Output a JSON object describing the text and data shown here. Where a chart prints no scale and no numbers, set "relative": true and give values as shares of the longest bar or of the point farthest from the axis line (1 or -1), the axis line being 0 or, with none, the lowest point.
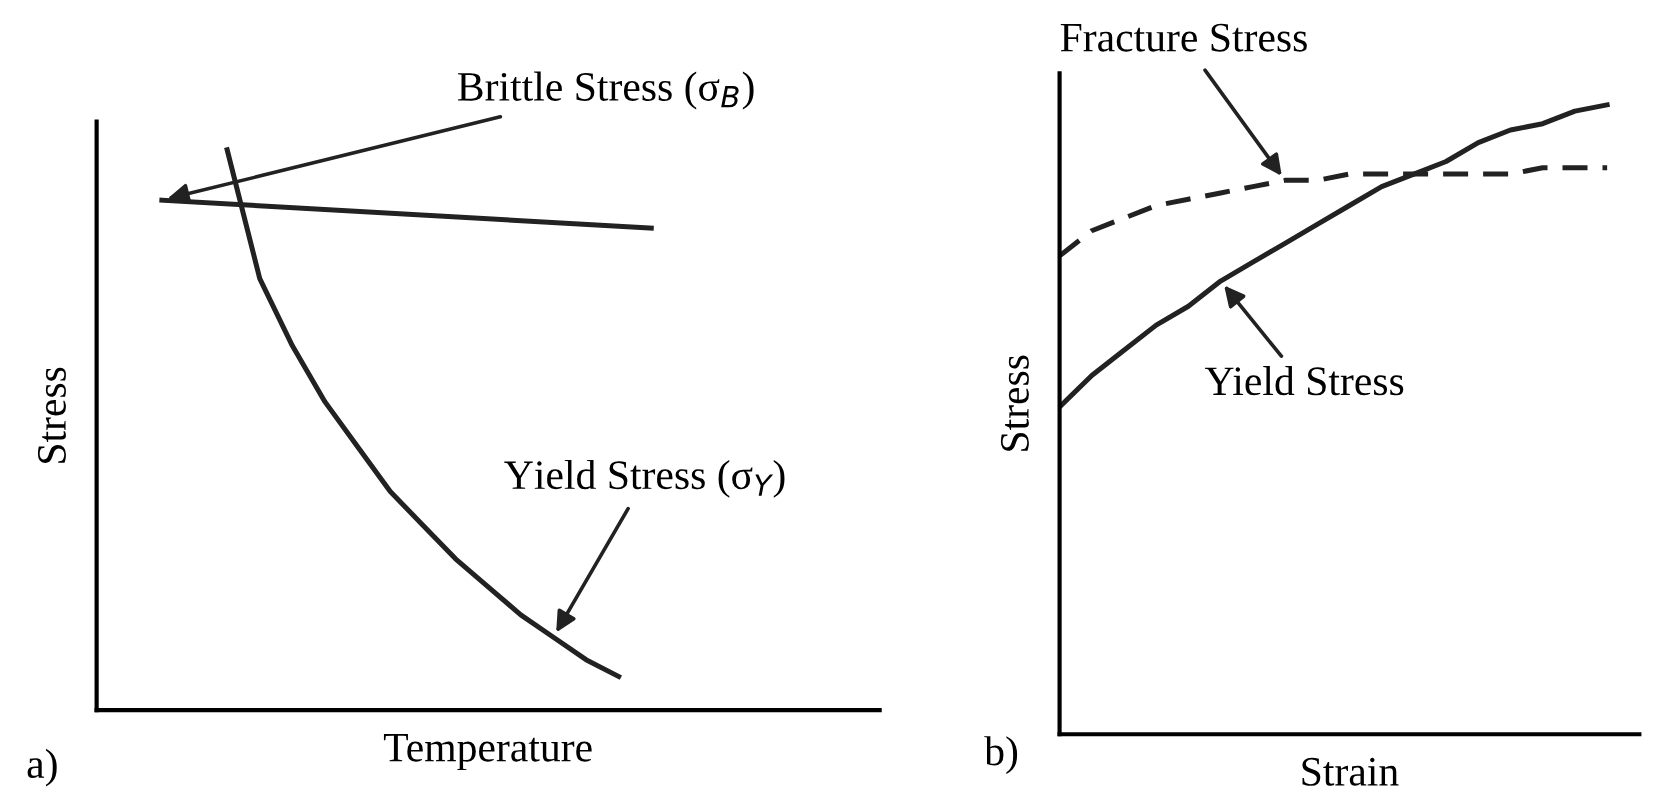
{
  "chart_data": [
    {
      "type": "line",
      "relative": true,
      "xlabel": "Temperature",
      "ylabel": "Stress",
      "categories": [
        null,
        null,
        null,
        null,
        null,
        null,
        null,
        null,
        null,
        null,
        null,
        null,
        null,
        null,
        null,
        null,
        null,
        null,
        null,
        null,
        null,
        null,
        null,
        null,
        null
      ],
      "series": [
        {
          "color": "#222222",
          "line_style": "solid",
          "values": [
            null,
            null,
            0.91,
            null,
            null,
            null,
            null,
            null,
            null,
            null,
            null,
            null,
            null,
            null,
            null,
            null,
            null,
            0.86,
            null,
            null,
            null,
            null,
            null,
            null,
            null
          ]
        },
        {
          "color": "#222222",
          "line_style": "solid",
          "values": [
            null,
            null,
            null,
            null,
            1.0,
            0.77,
            0.65,
            0.55,
            0.47,
            0.39,
            0.33,
            0.27,
            0.22,
            0.17,
            0.13,
            0.09,
            0.06,
            null,
            null,
            null,
            null,
            null,
            null,
            null,
            null
          ]
        }
      ],
      "annotations": [
        "Brittle Stress (σ$_{B}$)",
        "Yield Stress (σ$_{Y}$)",
        "a)"
      ],
      "legend": false,
      "marker": "none",
      "tick_labels": false
    },
    {
      "type": "line",
      "relative": true,
      "xlabel": "Strain",
      "ylabel": "Stress",
      "categories": [
        null,
        null,
        null,
        null,
        null,
        null,
        null,
        null,
        null,
        null,
        null,
        null,
        null,
        null,
        null,
        null,
        null,
        null,
        null
      ],
      "series": [
        {
          "color": "#222222",
          "line_style": "dashed",
          "values": [
            0.76,
            0.8,
            0.82,
            0.84,
            0.85,
            0.86,
            0.87,
            0.88,
            0.88,
            0.89,
            0.89,
            0.89,
            0.89,
            0.89,
            0.89,
            0.9,
            0.9,
            0.9,
            null
          ]
        },
        {
          "color": "#222222",
          "line_style": "solid",
          "values": [
            0.52,
            0.57,
            0.61,
            0.65,
            0.68,
            0.72,
            0.75,
            0.78,
            0.81,
            0.84,
            0.87,
            0.89,
            0.91,
            0.94,
            0.96,
            0.97,
            0.99,
            1.0,
            null
          ]
        }
      ],
      "annotations": [
        "Fracture Stress",
        "Yield Stress",
        "b)"
      ],
      "legend": false,
      "marker": "none",
      "tick_labels": false
    }
  ]
}
